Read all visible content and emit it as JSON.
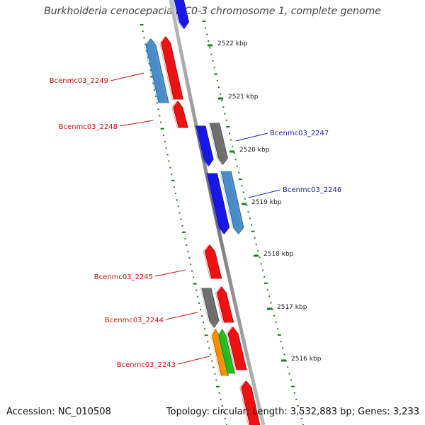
{
  "title": "Burkholderia cenocepacia MC0-3 chromosome 1, complete genome",
  "footer": {
    "accession": "Accession: NC_010508",
    "summary": "Topology: circular; Length: 3,532,883 bp; Genes: 3,233"
  },
  "colors": {
    "backbone": "#8c8c8c",
    "tick": "#1e7a1e",
    "forward_label": "#1f1fb4",
    "reverse_label": "#cc1111",
    "red": "#ee1111",
    "blue": "#1818e6",
    "steelblue": "#4a8cc8",
    "gray": "#6e6e6e",
    "orange": "#ff8c00",
    "green": "#22bb22"
  },
  "scale_labels": [
    "2522 kbp",
    "2521 kbp",
    "2520 kbp",
    "2519 kbp",
    "2518 kbp",
    "2517 kbp",
    "2516 kbp"
  ],
  "gene_labels": [
    {
      "text": "Bcenmc03_2249",
      "strand": "reverse"
    },
    {
      "text": "Bcenmc03_2248",
      "strand": "reverse"
    },
    {
      "text": "Bcenmc03_2247",
      "strand": "forward"
    },
    {
      "text": "Bcenmc03_2246",
      "strand": "forward"
    },
    {
      "text": "Bcenmc03_2245",
      "strand": "reverse"
    },
    {
      "text": "Bcenmc03_2244",
      "strand": "reverse"
    },
    {
      "text": "Bcenmc03_2243",
      "strand": "reverse"
    }
  ],
  "features": [
    {
      "color": "blue",
      "strand": "forward"
    },
    {
      "color": "steelblue",
      "strand": "reverse"
    },
    {
      "color": "red",
      "strand": "reverse"
    },
    {
      "color": "red",
      "strand": "reverse"
    },
    {
      "color": "blue",
      "strand": "forward"
    },
    {
      "color": "gray",
      "strand": "forward"
    },
    {
      "color": "blue",
      "strand": "forward"
    },
    {
      "color": "steelblue",
      "strand": "forward"
    },
    {
      "color": "red",
      "strand": "reverse"
    },
    {
      "color": "gray",
      "strand": "reverse"
    },
    {
      "color": "red",
      "strand": "reverse"
    },
    {
      "color": "orange",
      "strand": "reverse"
    },
    {
      "color": "green",
      "strand": "reverse"
    },
    {
      "color": "red",
      "strand": "reverse"
    },
    {
      "color": "red",
      "strand": "reverse"
    }
  ]
}
